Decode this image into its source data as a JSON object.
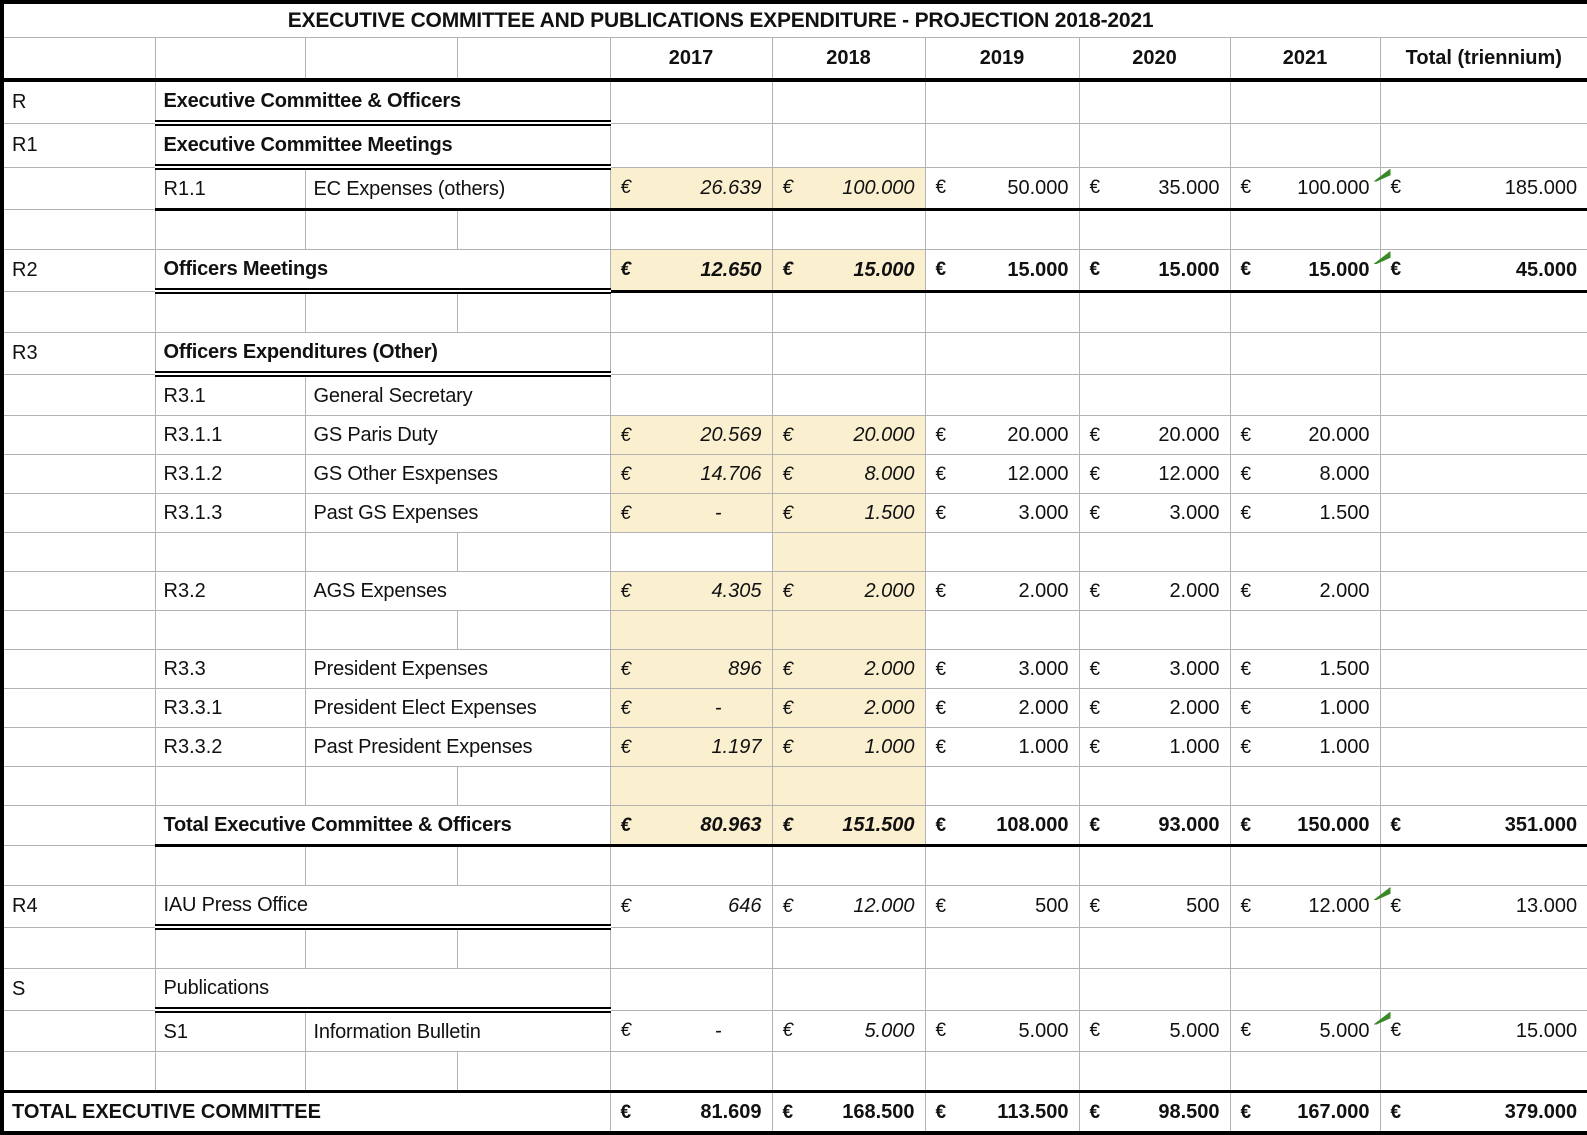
{
  "title": "EXECUTIVE COMMITTEE AND PUBLICATIONS EXPENDITURE - PROJECTION 2018-2021",
  "columns": [
    "2017",
    "2018",
    "2019",
    "2020",
    "2021",
    "Total (triennium)"
  ],
  "currency_symbol": "€",
  "highlight_color": "#faf0cf",
  "indicator_color": "#398a27",
  "rows": [
    {
      "kind": "section",
      "code": "R",
      "label": "Executive Committee & Officers",
      "bold": true,
      "underline": true
    },
    {
      "kind": "section",
      "code": "R1",
      "label": "Executive Committee Meetings",
      "bold": true,
      "underline": true
    },
    {
      "kind": "item",
      "code": "R1.1",
      "label": "EC Expenses (others)",
      "values": [
        "26.639",
        "100.000",
        "50.000",
        "35.000",
        "100.000",
        "185.000"
      ],
      "hl": [
        0,
        1
      ],
      "marker": true,
      "thick": true
    },
    {
      "kind": "blank"
    },
    {
      "kind": "section",
      "code": "R2",
      "label": "Officers Meetings",
      "bold": true,
      "underline": true,
      "values": [
        "12.650",
        "15.000",
        "15.000",
        "15.000",
        "15.000",
        "45.000"
      ],
      "values_bold": true,
      "hl": [
        0,
        1
      ],
      "marker": true,
      "thick": true
    },
    {
      "kind": "blank"
    },
    {
      "kind": "section",
      "code": "R3",
      "label": "Officers Expenditures (Other)",
      "bold": true,
      "underline": true
    },
    {
      "kind": "item",
      "code": "R3.1",
      "label": "General Secretary"
    },
    {
      "kind": "item",
      "code": "R3.1.1",
      "label": "GS Paris Duty",
      "values": [
        "20.569",
        "20.000",
        "20.000",
        "20.000",
        "20.000",
        ""
      ],
      "hl": [
        0,
        1
      ]
    },
    {
      "kind": "item",
      "code": "R3.1.2",
      "label": "GS Other Esxpenses",
      "values": [
        "14.706",
        "8.000",
        "12.000",
        "12.000",
        "8.000",
        ""
      ],
      "hl": [
        0,
        1
      ]
    },
    {
      "kind": "item",
      "code": "R3.1.3",
      "label": "Past GS Expenses",
      "values": [
        "-",
        "1.500",
        "3.000",
        "3.000",
        "1.500",
        ""
      ],
      "hl": [
        0,
        1
      ]
    },
    {
      "kind": "blank",
      "hl": [
        1
      ]
    },
    {
      "kind": "item",
      "code": "R3.2",
      "label": "AGS Expenses",
      "values": [
        "4.305",
        "2.000",
        "2.000",
        "2.000",
        "2.000",
        ""
      ],
      "hl": [
        0,
        1
      ]
    },
    {
      "kind": "blank",
      "hl": [
        0,
        1
      ]
    },
    {
      "kind": "item",
      "code": "R3.3",
      "label": "President Expenses",
      "values": [
        "896",
        "2.000",
        "3.000",
        "3.000",
        "1.500",
        ""
      ],
      "hl": [
        0,
        1
      ]
    },
    {
      "kind": "item",
      "code": "R3.3.1",
      "label": "President Elect Expenses",
      "values": [
        "-",
        "2.000",
        "2.000",
        "2.000",
        "1.000",
        ""
      ],
      "hl": [
        0,
        1
      ]
    },
    {
      "kind": "item",
      "code": "R3.3.2",
      "label": "Past President Expenses",
      "values": [
        "1.197",
        "1.000",
        "1.000",
        "1.000",
        "1.000",
        ""
      ],
      "hl": [
        0,
        1
      ]
    },
    {
      "kind": "blank",
      "hl": [
        0,
        1
      ]
    },
    {
      "kind": "subtotal",
      "label": "Total Executive Committee & Officers",
      "bold": true,
      "values": [
        "80.963",
        "151.500",
        "108.000",
        "93.000",
        "150.000",
        "351.000"
      ],
      "values_bold": true,
      "hl": [
        0,
        1
      ],
      "thick": true
    },
    {
      "kind": "blank"
    },
    {
      "kind": "section",
      "code": "R4",
      "label": "IAU Press Office",
      "bold": false,
      "underline": true,
      "values": [
        "646",
        "12.000",
        "500",
        "500",
        "12.000",
        "13.000"
      ],
      "marker": true
    },
    {
      "kind": "blank"
    },
    {
      "kind": "section",
      "code": "S",
      "label": "Publications",
      "bold": false,
      "underline": true
    },
    {
      "kind": "item",
      "code": "S1",
      "label": "Information Bulletin",
      "values": [
        "-",
        "5.000",
        "5.000",
        "5.000",
        "5.000",
        "15.000"
      ],
      "marker": true
    },
    {
      "kind": "blank"
    },
    {
      "kind": "grandtotal",
      "label": "TOTAL EXECUTIVE COMMITTEE",
      "bold": true,
      "values": [
        "81.609",
        "168.500",
        "113.500",
        "98.500",
        "167.000",
        "379.000"
      ],
      "values_bold": true,
      "topborder": true
    }
  ]
}
